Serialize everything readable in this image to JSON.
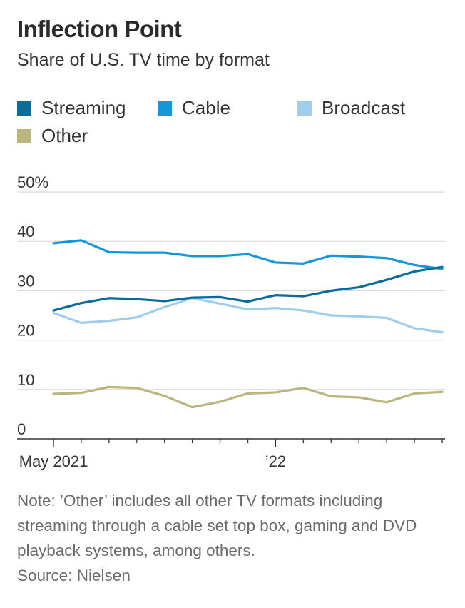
{
  "title": "Inflection Point",
  "subtitle": "Share of U.S. TV time by format",
  "legend": [
    {
      "label": "Streaming",
      "color": "#0b6b9b"
    },
    {
      "label": "Cable",
      "color": "#1496dc"
    },
    {
      "label": "Broadcast",
      "color": "#9fcdee"
    },
    {
      "label": "Other",
      "color": "#bdb57e"
    }
  ],
  "note": "Note: ’Other’ includes all other TV formats including streaming through a cable set top box, gaming and DVD playback systems, among others.",
  "source": "Source: Nielsen",
  "chart_data": {
    "type": "line",
    "x": [
      "2021-05",
      "2021-06",
      "2021-07",
      "2021-08",
      "2021-09",
      "2021-10",
      "2021-11",
      "2021-12",
      "2022-01",
      "2022-02",
      "2022-03",
      "2022-04",
      "2022-05",
      "2022-06",
      "2022-07"
    ],
    "x_tick_labels": [
      {
        "x": "2021-05",
        "label": "May 2021"
      },
      {
        "x": "2022-01",
        "label": "’22"
      }
    ],
    "y_ticks": [
      0,
      10,
      20,
      30,
      40,
      50
    ],
    "y_tick_labels": [
      "0",
      "10",
      "20",
      "30",
      "40",
      "50%"
    ],
    "ylim": [
      0,
      50
    ],
    "grid": true,
    "legend_position": "top",
    "series": [
      {
        "name": "Streaming",
        "color": "#0b6b9b",
        "values": [
          26.0,
          27.5,
          28.5,
          28.3,
          27.9,
          28.6,
          28.7,
          27.8,
          29.1,
          28.9,
          30.0,
          30.7,
          32.2,
          33.9,
          34.8
        ]
      },
      {
        "name": "Cable",
        "color": "#1496dc",
        "values": [
          39.6,
          40.2,
          37.8,
          37.7,
          37.7,
          37.0,
          37.0,
          37.4,
          35.7,
          35.5,
          37.1,
          36.9,
          36.6,
          35.2,
          34.4
        ]
      },
      {
        "name": "Broadcast",
        "color": "#9fcdee",
        "values": [
          25.5,
          23.5,
          23.9,
          24.6,
          26.7,
          28.5,
          27.4,
          26.2,
          26.5,
          26.0,
          25.0,
          24.8,
          24.5,
          22.4,
          21.6
        ]
      },
      {
        "name": "Other",
        "color": "#bdb57e",
        "values": [
          9.1,
          9.3,
          10.5,
          10.3,
          8.7,
          6.4,
          7.5,
          9.2,
          9.4,
          10.3,
          8.6,
          8.4,
          7.4,
          9.2,
          9.5
        ]
      }
    ]
  }
}
